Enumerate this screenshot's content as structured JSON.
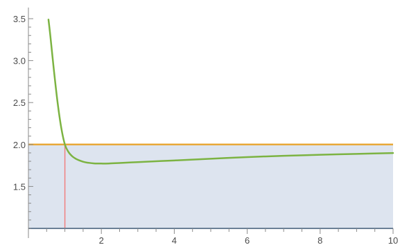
{
  "chart_data": {
    "type": "line",
    "title": "",
    "xlabel": "",
    "ylabel": "",
    "xlim": [
      0,
      10
    ],
    "ylim": [
      1.0,
      3.6
    ],
    "x_axis_at_y": 1.0,
    "x_ticks_major": [
      2,
      4,
      6,
      8,
      10
    ],
    "x_tick_labels": [
      "2",
      "4",
      "6",
      "8",
      "10"
    ],
    "y_ticks_major": [
      1.5,
      2.0,
      2.5,
      3.0,
      3.5
    ],
    "y_tick_labels": [
      "1.5",
      "2.0",
      "2.5",
      "3.0",
      "3.5"
    ],
    "grid": false,
    "series": [
      {
        "kind": "curve",
        "color": "#7cb342",
        "x": [
          0.55,
          0.6,
          0.7,
          0.8,
          0.9,
          1.0,
          1.1,
          1.2,
          1.3,
          1.4,
          1.5,
          1.6,
          1.8,
          2.0,
          2.2,
          2.5,
          3.0,
          3.5,
          4.0,
          5.0,
          6.0,
          7.0,
          8.0,
          9.0,
          10.0
        ],
        "y": [
          3.49,
          3.3,
          2.88,
          2.5,
          2.2,
          2.0,
          1.91,
          1.86,
          1.83,
          1.81,
          1.795,
          1.785,
          1.775,
          1.773,
          1.774,
          1.78,
          1.79,
          1.8,
          1.81,
          1.83,
          1.85,
          1.865,
          1.878,
          1.888,
          1.898
        ]
      },
      {
        "kind": "hline",
        "color": "#e8a838",
        "y": 2.0
      },
      {
        "kind": "vline",
        "color": "#f08080",
        "x": 1.0,
        "y_from": 1.0,
        "y_to": 2.0
      },
      {
        "kind": "region",
        "fill": "#dde4ef",
        "y_from": 1.0,
        "y_to": 2.0
      },
      {
        "kind": "hline",
        "color": "#6a7f96",
        "y": 1.0
      }
    ]
  }
}
